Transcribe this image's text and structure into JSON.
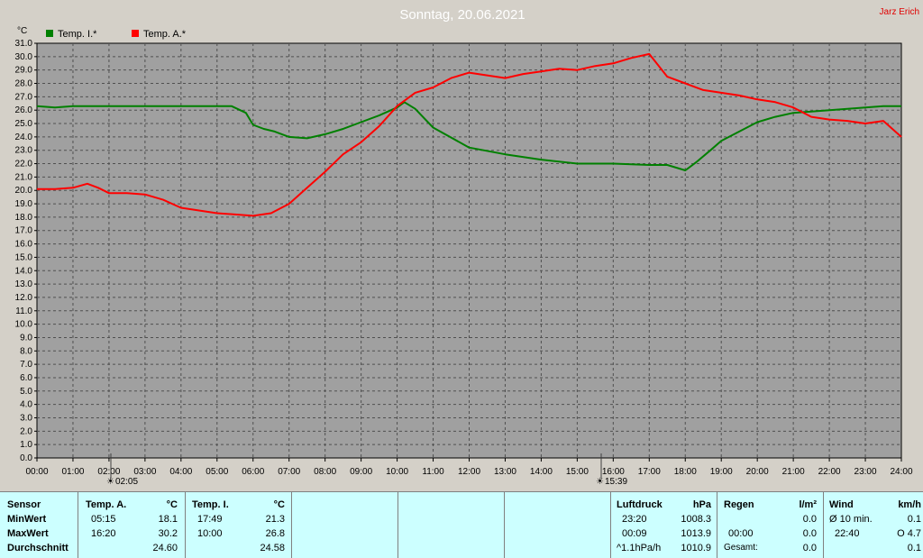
{
  "title": "Sonntag, 20.06.2021",
  "author": "Jarz Erich",
  "unit_label": "°C",
  "legend": [
    {
      "label": "Temp. I.*",
      "color": "#008000"
    },
    {
      "label": "Temp. A.*",
      "color": "#ff0000"
    }
  ],
  "markers": [
    {
      "label": "02:05"
    },
    {
      "label": "15:39"
    }
  ],
  "chart_data": {
    "type": "line",
    "xlabel": "",
    "ylabel": "°C",
    "xlim": [
      0,
      24
    ],
    "ylim": [
      0.0,
      31.0
    ],
    "x_ticks": [
      "00:00",
      "01:00",
      "02:00",
      "03:00",
      "04:00",
      "05:00",
      "06:00",
      "07:00",
      "08:00",
      "09:00",
      "10:00",
      "11:00",
      "12:00",
      "13:00",
      "14:00",
      "15:00",
      "16:00",
      "17:00",
      "18:00",
      "19:00",
      "20:00",
      "21:00",
      "22:00",
      "23:00",
      "24:00"
    ],
    "y_ticks": [
      "0.0",
      "1.0",
      "2.0",
      "3.0",
      "4.0",
      "5.0",
      "6.0",
      "7.0",
      "8.0",
      "9.0",
      "10.0",
      "11.0",
      "12.0",
      "13.0",
      "14.0",
      "15.0",
      "16.0",
      "17.0",
      "18.0",
      "19.0",
      "20.0",
      "21.0",
      "22.0",
      "23.0",
      "24.0",
      "25.0",
      "26.0",
      "27.0",
      "28.0",
      "29.0",
      "30.0",
      "31.0"
    ],
    "grid": true,
    "series": [
      {
        "name": "Temp. I.*",
        "color": "#008000",
        "x": [
          0,
          0.5,
          1,
          2,
          3,
          4,
          5,
          5.4,
          5.8,
          6,
          6.3,
          6.6,
          7,
          7.5,
          8,
          8.5,
          9,
          9.5,
          10,
          10.2,
          10.5,
          11,
          12,
          13,
          14,
          15,
          16,
          17,
          17.5,
          18,
          18.3,
          18.7,
          19,
          19.5,
          20,
          20.5,
          21,
          21.5,
          22,
          22.5,
          23,
          23.5,
          24
        ],
        "y": [
          26.3,
          26.2,
          26.3,
          26.3,
          26.3,
          26.3,
          26.3,
          26.3,
          25.8,
          24.9,
          24.6,
          24.4,
          24.0,
          23.9,
          24.2,
          24.6,
          25.1,
          25.6,
          26.2,
          26.6,
          26.1,
          24.7,
          23.2,
          22.7,
          22.3,
          22.0,
          22.0,
          21.9,
          21.9,
          21.5,
          22.1,
          23.0,
          23.7,
          24.4,
          25.1,
          25.5,
          25.8,
          25.9,
          26.0,
          26.1,
          26.2,
          26.3,
          26.3
        ]
      },
      {
        "name": "Temp. A.*",
        "color": "#ff0000",
        "x": [
          0,
          0.5,
          1,
          1.4,
          1.7,
          2,
          2.5,
          3,
          3.5,
          4,
          4.5,
          5,
          5.5,
          6,
          6.5,
          7,
          7.5,
          8,
          8.5,
          9,
          9.5,
          10,
          10.5,
          11,
          11.5,
          12,
          12.5,
          13,
          13.5,
          14,
          14.5,
          15,
          15.5,
          16,
          16.5,
          17,
          17.5,
          18,
          18.5,
          19,
          19.5,
          20,
          20.5,
          21,
          21.5,
          22,
          22.5,
          23,
          23.5,
          24
        ],
        "y": [
          20.1,
          20.1,
          20.2,
          20.5,
          20.2,
          19.8,
          19.8,
          19.7,
          19.3,
          18.7,
          18.5,
          18.3,
          18.2,
          18.1,
          18.3,
          19.0,
          20.2,
          21.4,
          22.7,
          23.6,
          24.8,
          26.3,
          27.3,
          27.7,
          28.4,
          28.8,
          28.6,
          28.4,
          28.7,
          28.9,
          29.1,
          29.0,
          29.3,
          29.5,
          29.9,
          30.2,
          28.5,
          28.0,
          27.5,
          27.3,
          27.1,
          26.8,
          26.6,
          26.2,
          25.5,
          25.3,
          25.2,
          25.0,
          25.2,
          24.0
        ]
      }
    ]
  },
  "table": {
    "row_labels": {
      "header": "Sensor",
      "min": "MinWert",
      "max": "MaxWert",
      "avg": "Durchschnitt"
    },
    "temp_a": {
      "name": "Temp. A.",
      "unit": "°C",
      "min_time": "05:15",
      "min_val": "18.1",
      "max_time": "16:20",
      "max_val": "30.2",
      "avg": "24.60"
    },
    "temp_i": {
      "name": "Temp. I.",
      "unit": "°C",
      "min_time": "17:49",
      "min_val": "21.3",
      "max_time": "10:00",
      "max_val": "26.8",
      "avg": "24.58"
    },
    "pressure": {
      "name": "Luftdruck",
      "unit": "hPa",
      "min_time": "23:20",
      "min_val": "1008.3",
      "max_time": "00:09",
      "max_val": "1013.9",
      "trend_label": "^1.1hPa/h",
      "trend_val": "1010.9"
    },
    "rain": {
      "name": "Regen",
      "unit": "l/m²",
      "row2_time": "00:00",
      "row2_val": "0.0",
      "row3_label": "Gesamt:",
      "row3_val": "0.0",
      "row1_val": "0.0"
    },
    "wind": {
      "name": "Wind",
      "unit": "km/h",
      "avg_label": "Ø 10 min.",
      "avg_val": "0.1",
      "max_time": "22:40",
      "max_val": "O 4.7",
      "row3_val": "0.1"
    }
  }
}
